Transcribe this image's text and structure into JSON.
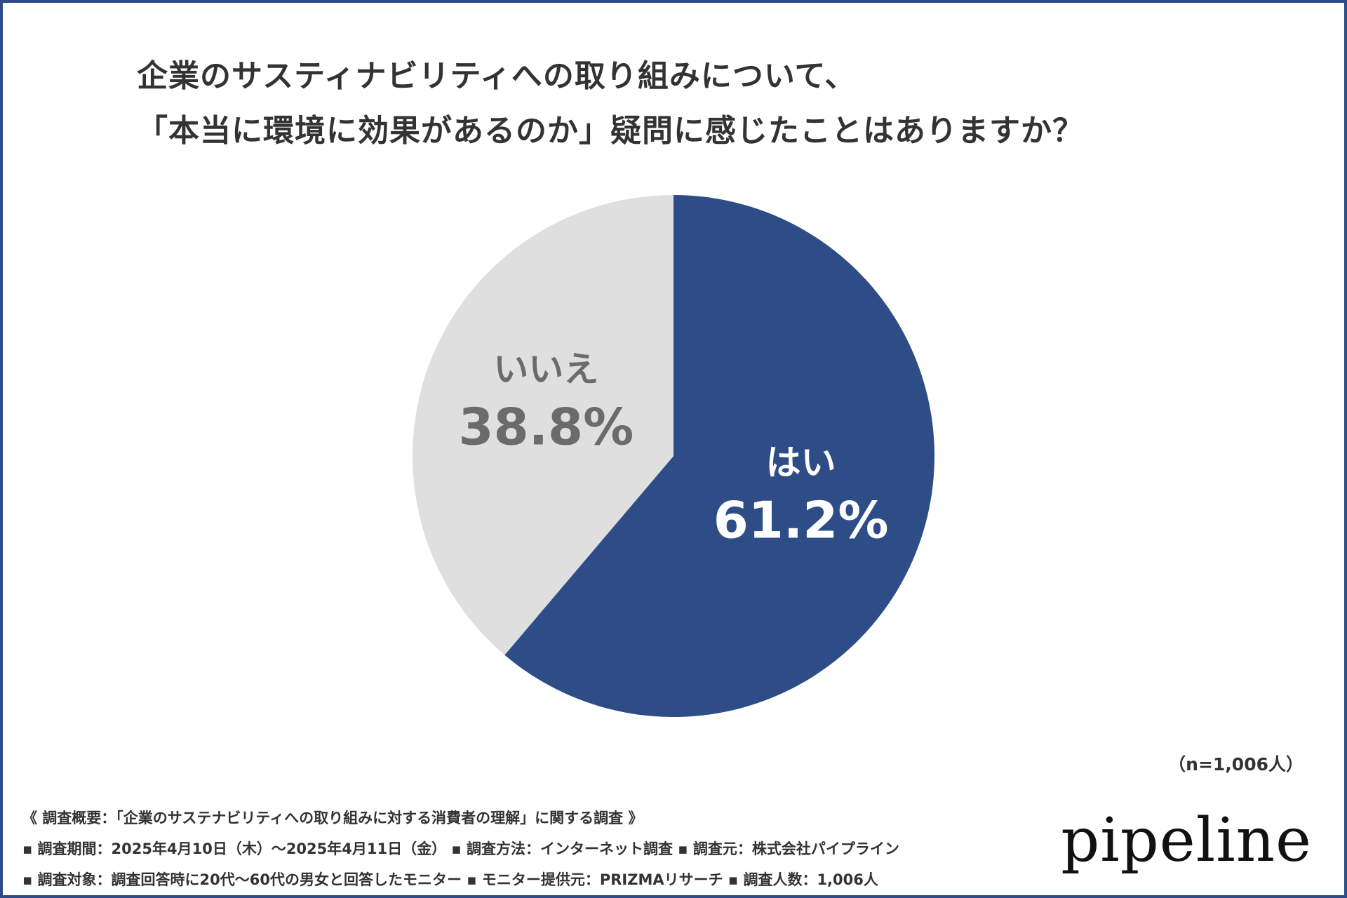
{
  "title": {
    "line1": "企業のサスティナビリティへの取り組みについて、",
    "line2": "「本当に環境に効果があるのか」疑問に感じたことはありますか？"
  },
  "chart_data": {
    "type": "pie",
    "title": "企業のサスティナビリティへの取り組みについて、「本当に環境に効果があるのか」疑問に感じたことはありますか？",
    "slices": [
      {
        "label": "はい",
        "value": 61.2,
        "value_label": "61.2%",
        "color": "#2e4d86",
        "label_color": "#ffffff"
      },
      {
        "label": "いいえ",
        "value": 38.8,
        "value_label": "38.8%",
        "color": "#dfdfdf",
        "label_color": "#6b6b6b"
      }
    ],
    "start": "12 o'clock",
    "direction": "clockwise"
  },
  "sample_size": "（n=1,006人）",
  "footer": {
    "line1": "《 調査概要：「企業のサステナビリティへの取り組みに対する消費者の理解」に関する調査 》",
    "line2": "▪ 調査期間：2025年4月10日（木）〜2025年4月11日（金） ▪ 調査方法：インターネット調査 ▪ 調査元：株式会社パイプライン",
    "line3": "▪ 調査対象：調査回答時に20代〜60代の男女と回答したモニター ▪ モニター提供元：PRIZMAリサーチ ▪ 調査人数：1,006人"
  },
  "logo": "pipeline"
}
